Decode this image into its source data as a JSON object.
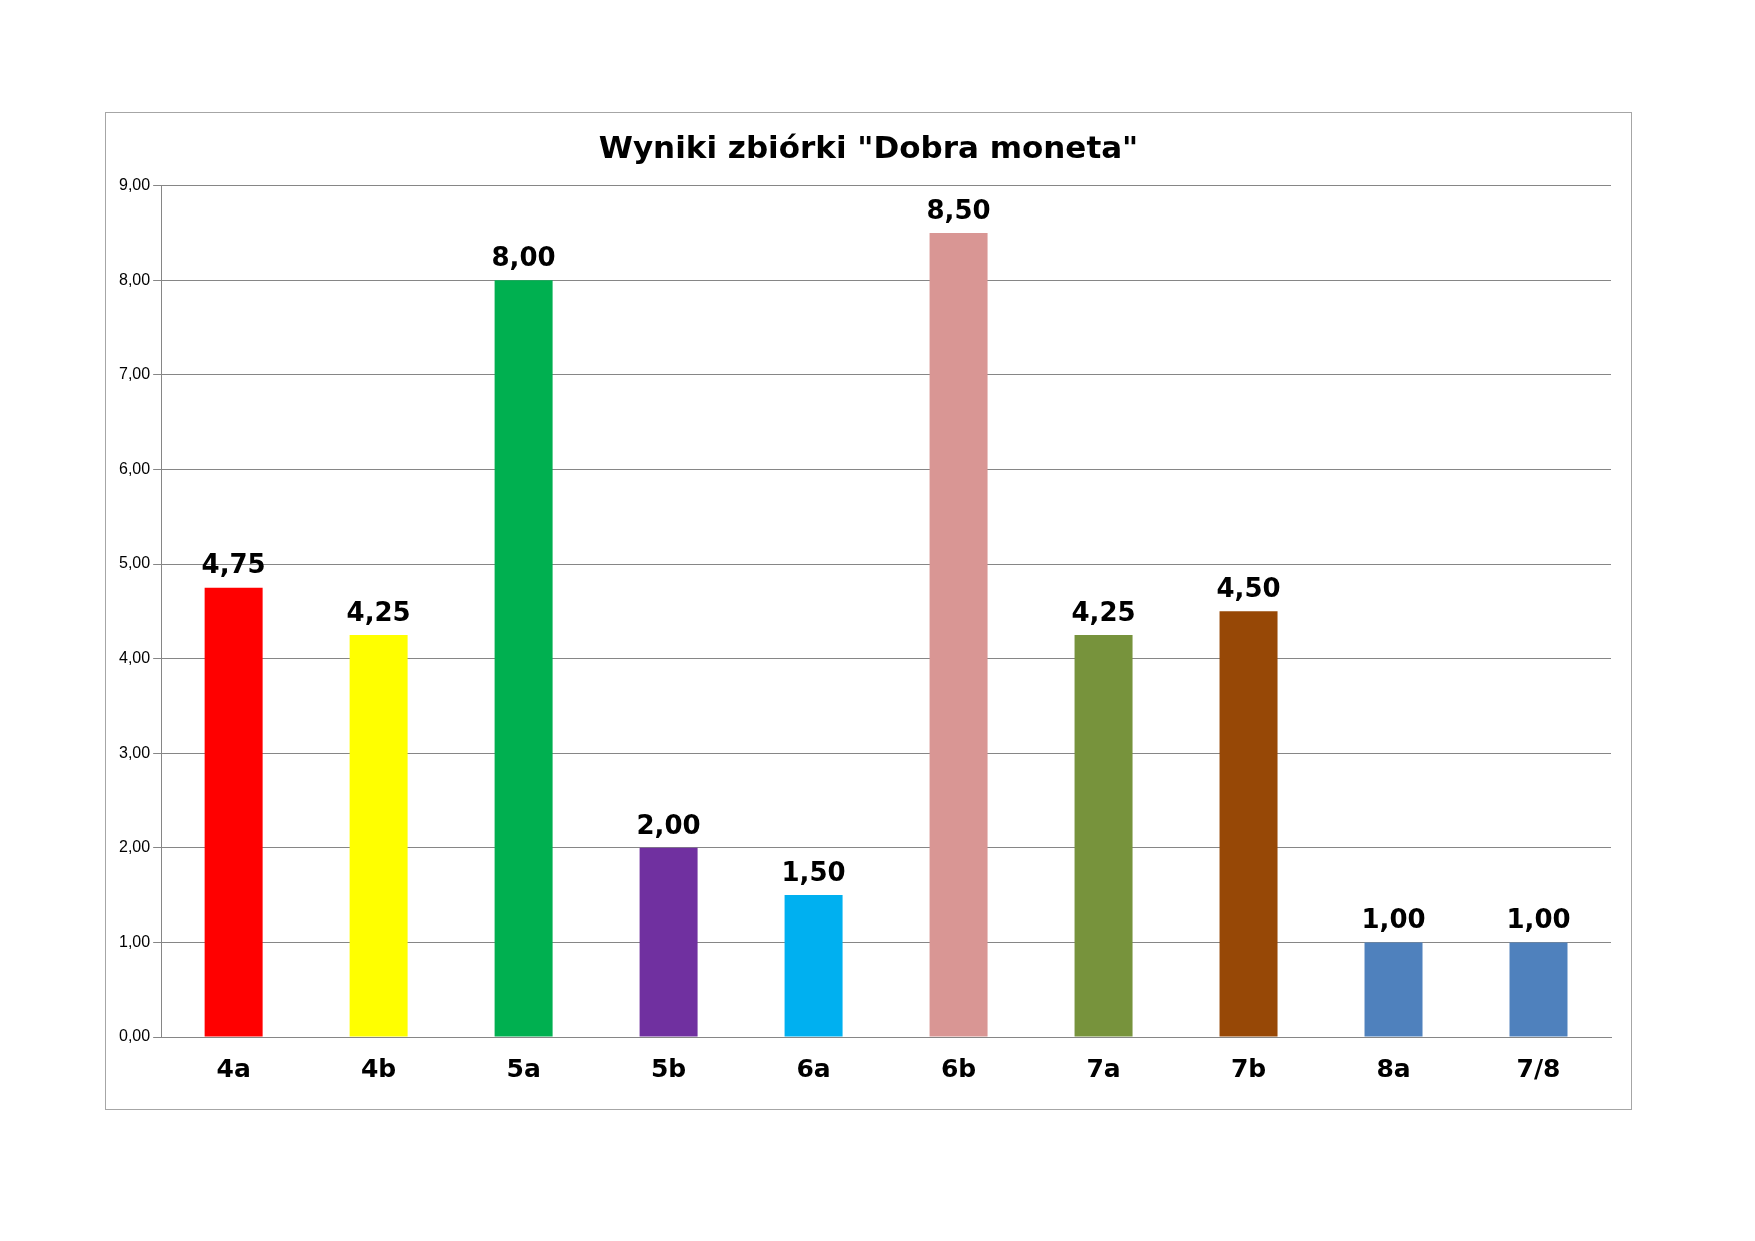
{
  "chart_data": {
    "type": "bar",
    "title": "Wyniki zbiórki \"Dobra moneta\"",
    "categories": [
      "4a",
      "4b",
      "5a",
      "5b",
      "6a",
      "6b",
      "7a",
      "7b",
      "8a",
      "7/8"
    ],
    "values": [
      4.75,
      4.25,
      8,
      2,
      1.5,
      8.5,
      4.25,
      4.5,
      1,
      1
    ],
    "colors": [
      "#ff0000",
      "#ffff00",
      "#00b050",
      "#7030a0",
      "#00b0f0",
      "#d99694",
      "#77933c",
      "#974806",
      "#4f81bd",
      "#4f81bd"
    ],
    "value_labels": [
      "4,75",
      "4,25",
      "8,00",
      "2,00",
      "1,50",
      "8,50",
      "4,25",
      "4,50",
      "1,00",
      "1,00"
    ],
    "ylim": [
      0,
      9
    ],
    "yticks": [
      {
        "value": 0,
        "label": "0,00"
      },
      {
        "value": 1,
        "label": "1,00"
      },
      {
        "value": 2,
        "label": "2,00"
      },
      {
        "value": 3,
        "label": "3,00"
      },
      {
        "value": 4,
        "label": "4,00"
      },
      {
        "value": 5,
        "label": "5,00"
      },
      {
        "value": 6,
        "label": "6,00"
      },
      {
        "value": 7,
        "label": "7,00"
      },
      {
        "value": 8,
        "label": "8,00"
      },
      {
        "value": 9,
        "label": "9,00"
      }
    ],
    "grid": "y",
    "legend": false
  }
}
